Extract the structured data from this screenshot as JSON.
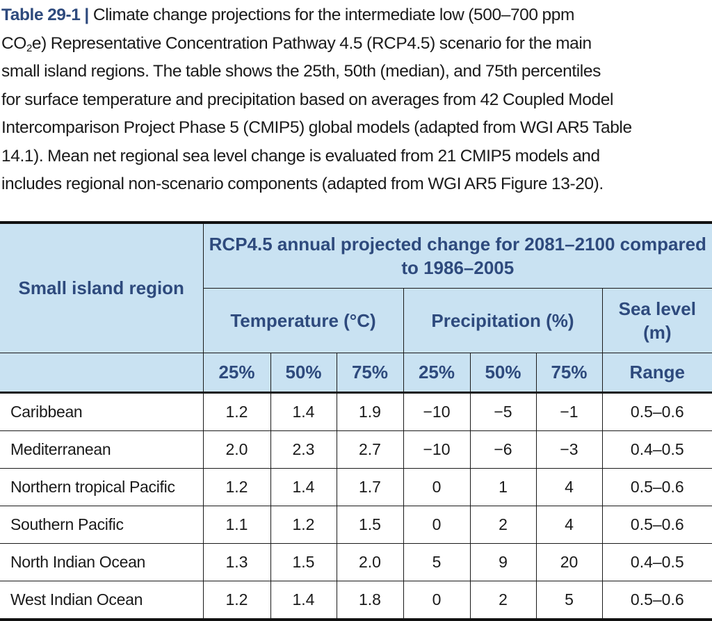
{
  "caption": {
    "label": "Table 29-1 |",
    "lines": [
      "Climate change projections for the intermediate low (500–700 ppm",
      "e) Representative Concentration Pathway 4.5 (RCP4.5) scenario for the main",
      "small island regions. The table shows the 25th, 50th (median), and 75th percentiles",
      "for surface temperature and precipitation based on averages from 42 Coupled Model",
      "Intercomparison Project Phase 5 (CMIP5) global models (adapted from WGI AR5 Table",
      "14.1). Mean net regional sea level change is evaluated from 21 CMIP5 models and",
      "includes regional non-scenario components (adapted from WGI AR5 Figure 13-20)."
    ],
    "co2_prefix": "CO",
    "co2_sub": "2"
  },
  "table": {
    "region_header": "Small island region",
    "span_header": "RCP4.5 annual projected change for 2081–2100 compared to 1986–2005",
    "groups": {
      "temperature": "Temperature (°C)",
      "precipitation": "Precipitation (%)",
      "sea_level": "Sea level (m)"
    },
    "subheaders": [
      "25%",
      "50%",
      "75%",
      "25%",
      "50%",
      "75%",
      "Range"
    ],
    "rows": [
      {
        "region": "Caribbean",
        "t25": "1.2",
        "t50": "1.4",
        "t75": "1.9",
        "p25": "−10",
        "p50": "−5",
        "p75": "−1",
        "sea": "0.5–0.6"
      },
      {
        "region": "Mediterranean",
        "t25": "2.0",
        "t50": "2.3",
        "t75": "2.7",
        "p25": "−10",
        "p50": "−6",
        "p75": "−3",
        "sea": "0.4–0.5"
      },
      {
        "region": "Northern tropical Pacific",
        "t25": "1.2",
        "t50": "1.4",
        "t75": "1.7",
        "p25": "0",
        "p50": "1",
        "p75": "4",
        "sea": "0.5–0.6"
      },
      {
        "region": "Southern Pacific",
        "t25": "1.1",
        "t50": "1.2",
        "t75": "1.5",
        "p25": "0",
        "p50": "2",
        "p75": "4",
        "sea": "0.5–0.6"
      },
      {
        "region": "North Indian Ocean",
        "t25": "1.3",
        "t50": "1.5",
        "t75": "2.0",
        "p25": "5",
        "p50": "9",
        "p75": "20",
        "sea": "0.4–0.5"
      },
      {
        "region": "West Indian Ocean",
        "t25": "1.2",
        "t50": "1.4",
        "t75": "1.8",
        "p25": "0",
        "p50": "2",
        "p75": "5",
        "sea": "0.5–0.6"
      }
    ]
  },
  "colors": {
    "header_fill": "#c9e2f2",
    "header_text": "#2e4a7d",
    "label_text": "#2e4a7d"
  }
}
